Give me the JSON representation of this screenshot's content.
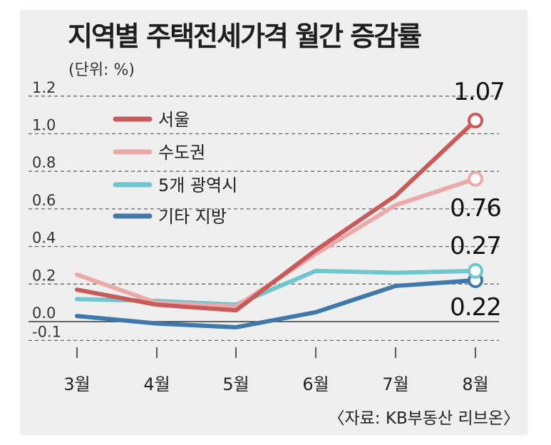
{
  "title": "지역별 주택전세가격 월간 증감률",
  "unit": "(단위: %)",
  "source": "〈자료: KB부동산 리브온〉",
  "chart_data": {
    "type": "line",
    "title": "지역별 주택전세가격 월간 증감률",
    "ylabel": "(단위: %)",
    "xlabel": "",
    "x": [
      "3월",
      "4월",
      "5월",
      "6월",
      "7월",
      "8월"
    ],
    "ylim": [
      -0.1,
      1.2
    ],
    "yticks": [
      1.2,
      1.0,
      0.8,
      0.6,
      0.4,
      0.2,
      0.0,
      -0.1
    ],
    "ytick_labels": [
      "1.2",
      "1.0",
      "0.8",
      "0.6",
      "0.4",
      "0.2",
      "0.0",
      "-0.1"
    ],
    "grid": true,
    "legend_position": "top-left",
    "series": [
      {
        "name": "서울",
        "color": "#c85a5a",
        "values": [
          0.17,
          0.09,
          0.06,
          0.38,
          0.67,
          1.07
        ],
        "end_label": "1.07"
      },
      {
        "name": "수도권",
        "color": "#eba9a9",
        "values": [
          0.25,
          0.1,
          0.08,
          0.36,
          0.62,
          0.76
        ],
        "end_label": "0.76"
      },
      {
        "name": "5개 광역시",
        "color": "#6ec6cf",
        "values": [
          0.12,
          0.11,
          0.09,
          0.27,
          0.26,
          0.27
        ],
        "end_label": "0.27"
      },
      {
        "name": "기타 지방",
        "color": "#3f78ab",
        "values": [
          0.03,
          -0.01,
          -0.03,
          0.05,
          0.19,
          0.22
        ],
        "end_label": "0.22"
      }
    ]
  }
}
